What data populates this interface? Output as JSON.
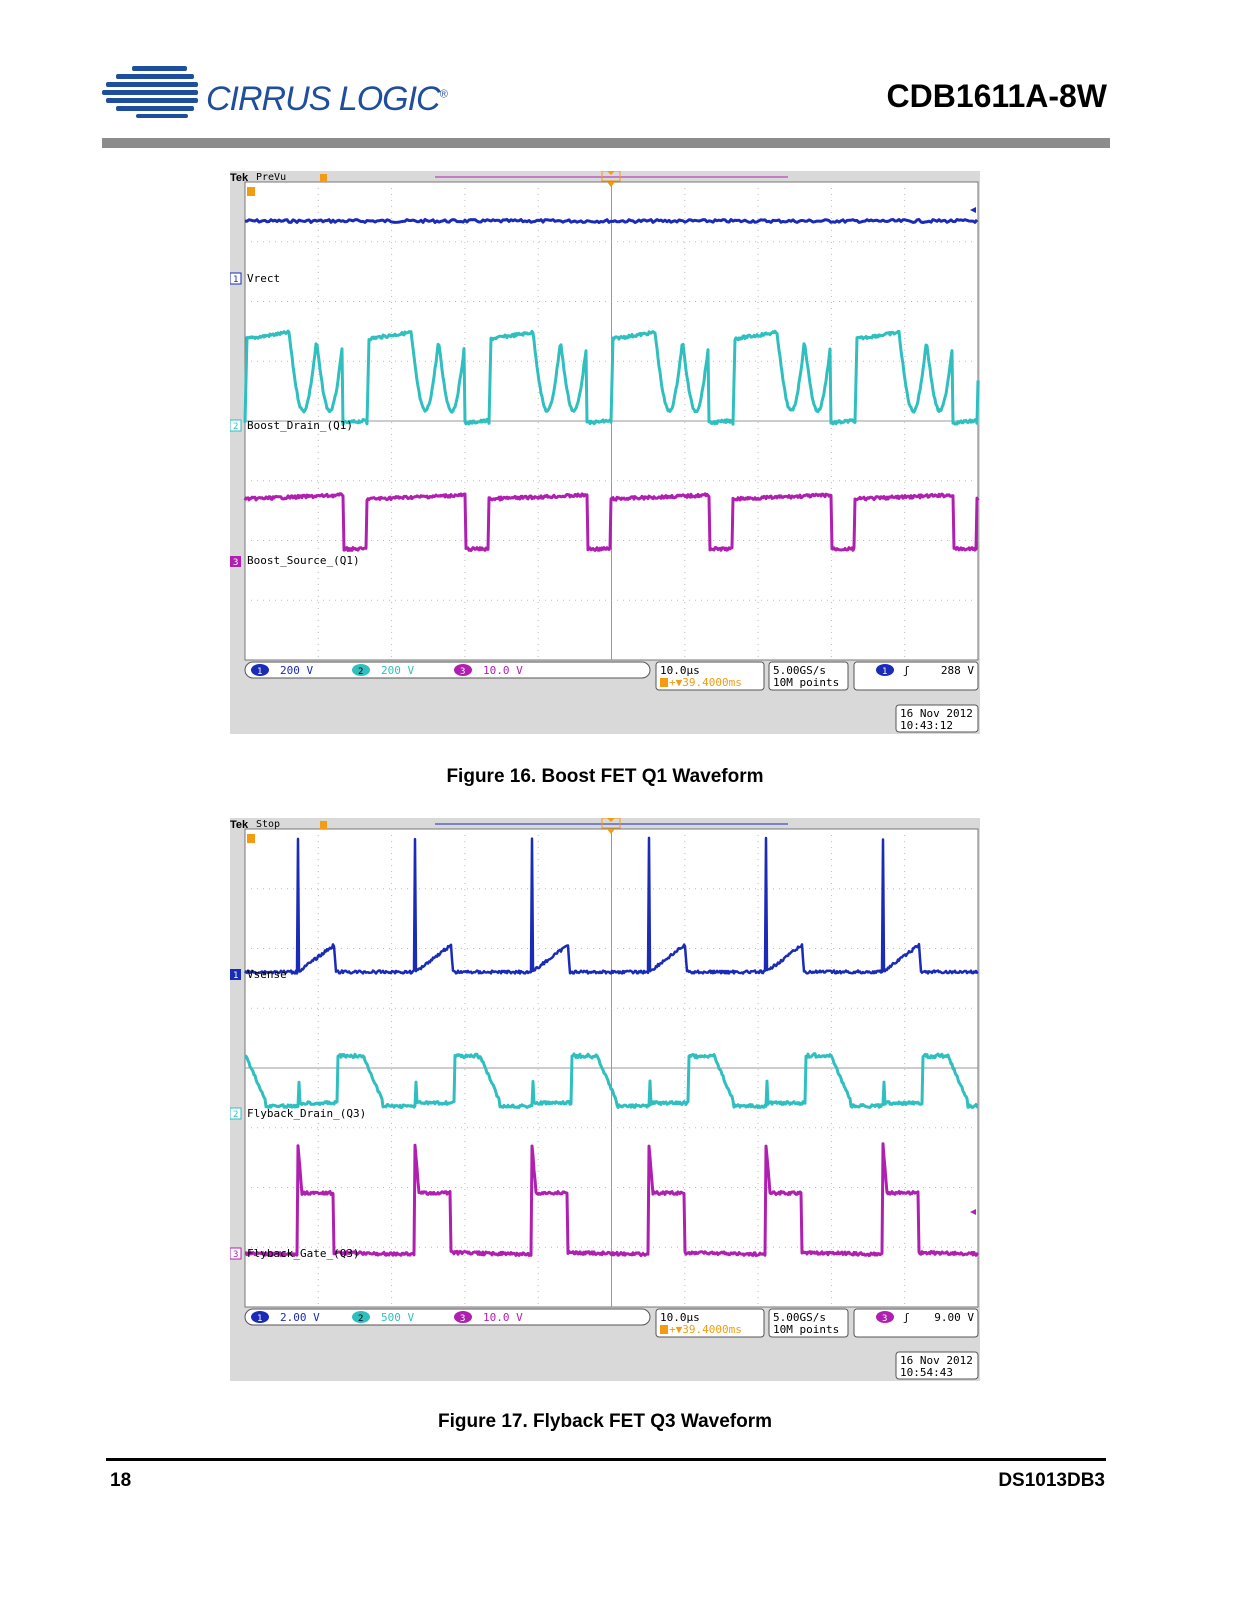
{
  "header": {
    "company": "CIRRUS LOGIC",
    "trademark": "®",
    "doc_title": "CDB1611A-8W"
  },
  "colors": {
    "ch1": "#1a2bb8",
    "ch2": "#2fbfbf",
    "ch3": "#b020b0",
    "trigger": "#f39c12",
    "brand": "#1f4e9c"
  },
  "figures": [
    {
      "caption": "Figure 16.  Boost FET Q1 Waveform",
      "scope": {
        "brand": "Tek",
        "state": "PreVu",
        "channels": [
          {
            "num": "1",
            "label": "Vrect",
            "scale": "200 V"
          },
          {
            "num": "2",
            "label": "Boost_Drain_(Q1)",
            "scale": "200 V"
          },
          {
            "num": "3",
            "label": "Boost_Source_(Q1)",
            "scale": "10.0 V"
          }
        ],
        "timebase": "10.0µs",
        "trigger_position": "+▼39.4000ms",
        "sample_rate": "5.00GS/s",
        "record_length": "10M points",
        "trigger_source": "1",
        "trigger_slope": "ʃ",
        "trigger_level": "288 V",
        "date": "16 Nov 2012",
        "time": "10:43:12"
      }
    },
    {
      "caption": "Figure 17.  Flyback FET Q3 Waveform",
      "scope": {
        "brand": "Tek",
        "state": "Stop",
        "channels": [
          {
            "num": "1",
            "label": "Vsense",
            "scale": "2.00 V"
          },
          {
            "num": "2",
            "label": "Flyback_Drain_(Q3)",
            "scale": "500 V"
          },
          {
            "num": "3",
            "label": "Flyback_Gate_(Q3)",
            "scale": "10.0 V"
          }
        ],
        "timebase": "10.0µs",
        "trigger_position": "+▼39.4000ms",
        "sample_rate": "5.00GS/s",
        "record_length": "10M points",
        "trigger_source": "3",
        "trigger_slope": "ʃ",
        "trigger_level": "9.00 V",
        "date": "16 Nov 2012",
        "time": "10:54:43"
      }
    }
  ],
  "footer": {
    "page_number": "18",
    "doc_id": "DS1013DB3"
  }
}
